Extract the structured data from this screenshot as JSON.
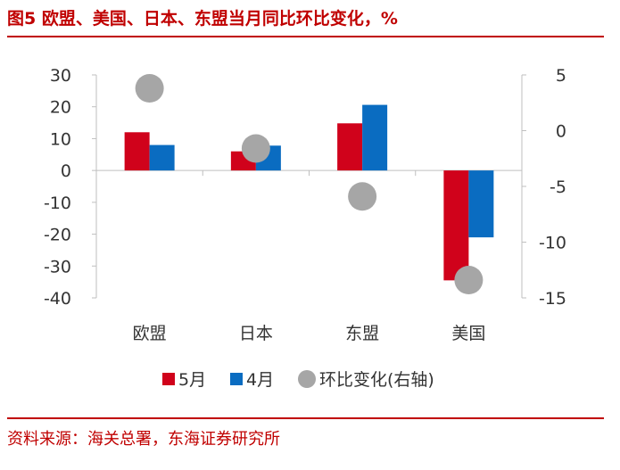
{
  "header": {
    "title": "图5  欧盟、美国、日本、东盟当月同比环比变化，%"
  },
  "footer": {
    "source": "资料来源：海关总署，东海证券研究所"
  },
  "chart_data": {
    "type": "bar",
    "categories": [
      "欧盟",
      "日本",
      "东盟",
      "美国"
    ],
    "series": [
      {
        "name": "5月",
        "axis": "left",
        "color": "#d0021b",
        "values": [
          12.0,
          6.0,
          14.8,
          -34.5
        ]
      },
      {
        "name": "4月",
        "axis": "left",
        "color": "#0a6cc1",
        "values": [
          8.0,
          7.8,
          20.6,
          -21.0
        ]
      },
      {
        "name": "环比变化(右轴)",
        "axis": "right",
        "type": "scatter",
        "color": "#a6a6a6",
        "values": [
          3.8,
          -1.6,
          -5.9,
          -13.4
        ]
      }
    ],
    "ylim_left": [
      -40,
      30
    ],
    "yticks_left": [
      "30",
      "20",
      "10",
      "0",
      "-10",
      "-20",
      "-30",
      "-40"
    ],
    "yticks_left_values": [
      30,
      20,
      10,
      0,
      -10,
      -20,
      -30,
      -40
    ],
    "ylim_right": [
      -15,
      5
    ],
    "yticks_right": [
      "5",
      "0",
      "-5",
      "-10",
      "-15"
    ],
    "yticks_right_values": [
      5,
      0,
      -5,
      -10,
      -15
    ],
    "legend": [
      "5月",
      "4月",
      "环比变化(右轴)"
    ],
    "legend_position": "bottom",
    "grid": false
  }
}
